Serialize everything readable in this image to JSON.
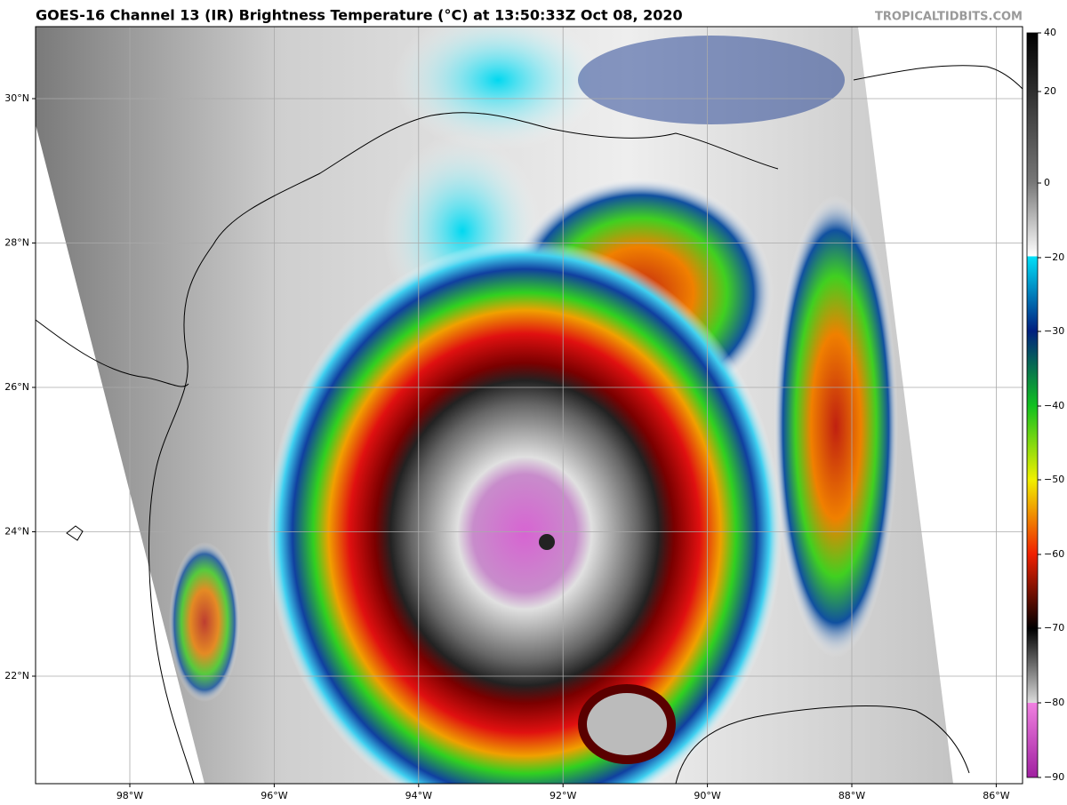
{
  "header": {
    "title": "GOES-16 Channel 13 (IR) Brightness Temperature (°C) at 13:50:33Z Oct 08, 2020",
    "source": "TROPICALTIDBITS.COM"
  },
  "map": {
    "lat_labels": [
      "30°N",
      "28°N",
      "26°N",
      "24°N",
      "22°N"
    ],
    "lon_labels": [
      "98°W",
      "96°W",
      "94°W",
      "92°W",
      "90°W",
      "88°W",
      "86°W"
    ]
  },
  "colorbar": {
    "ticks": [
      40,
      20,
      0,
      {
        "value": -20,
        "label": "−20"
      },
      {
        "value": -30,
        "label": "−30"
      },
      {
        "value": -40,
        "label": "−40"
      },
      {
        "value": -50,
        "label": "−50"
      },
      {
        "value": -60,
        "label": "−60"
      },
      {
        "value": -70,
        "label": "−70"
      },
      {
        "value": -80,
        "label": "−80"
      },
      {
        "value": -90,
        "label": "−90"
      }
    ]
  }
}
